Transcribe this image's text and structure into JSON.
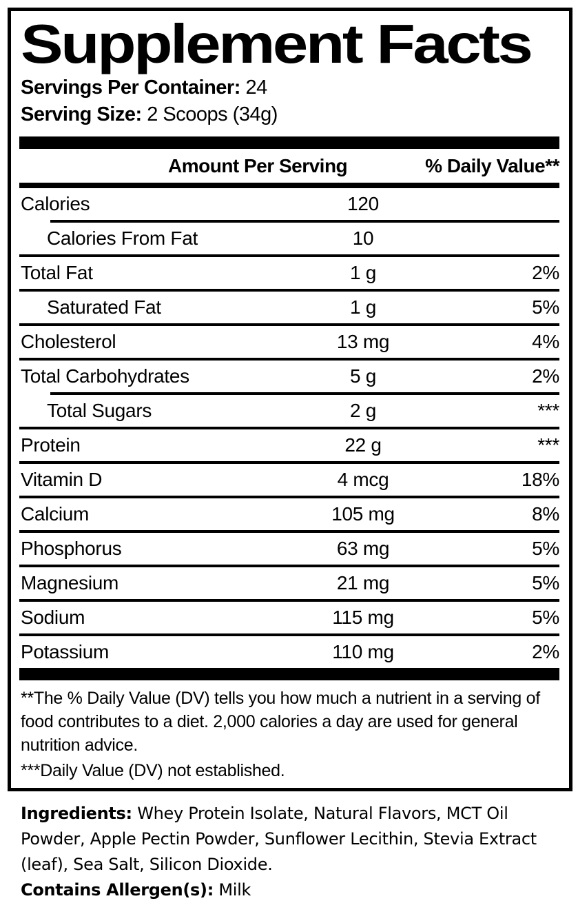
{
  "title": "Supplement Facts",
  "servings_per_container": {
    "label": "Servings Per Container:",
    "value": "24"
  },
  "serving_size": {
    "label": "Serving Size:",
    "value": "2 Scoops (34g)"
  },
  "table": {
    "headers": {
      "amount": "Amount Per Serving",
      "daily_value": "% Daily Value**"
    },
    "rows": [
      {
        "name": "Calories",
        "amount": "120",
        "dv": "",
        "indent": false,
        "rule_above_indented": false
      },
      {
        "name": "Calories From Fat",
        "amount": "10",
        "dv": "",
        "indent": true,
        "rule_above_indented": true
      },
      {
        "name": "Total Fat",
        "amount": "1 g",
        "dv": "2%",
        "indent": false,
        "rule_above_indented": false
      },
      {
        "name": "Saturated Fat",
        "amount": "1 g",
        "dv": "5%",
        "indent": true,
        "rule_above_indented": false
      },
      {
        "name": "Cholesterol",
        "amount": "13 mg",
        "dv": "4%",
        "indent": false,
        "rule_above_indented": false
      },
      {
        "name": "Total Carbohydrates",
        "amount": "5 g",
        "dv": "2%",
        "indent": false,
        "rule_above_indented": false
      },
      {
        "name": "Total Sugars",
        "amount": "2 g",
        "dv": "***",
        "indent": true,
        "rule_above_indented": true
      },
      {
        "name": "Protein",
        "amount": "22 g",
        "dv": "***",
        "indent": false,
        "rule_above_indented": false
      },
      {
        "name": "Vitamin D",
        "amount": "4 mcg",
        "dv": "18%",
        "indent": false,
        "rule_above_indented": false
      },
      {
        "name": "Calcium",
        "amount": "105 mg",
        "dv": "8%",
        "indent": false,
        "rule_above_indented": false
      },
      {
        "name": "Phosphorus",
        "amount": "63 mg",
        "dv": "5%",
        "indent": false,
        "rule_above_indented": false
      },
      {
        "name": "Magnesium",
        "amount": "21 mg",
        "dv": "5%",
        "indent": false,
        "rule_above_indented": false
      },
      {
        "name": "Sodium",
        "amount": "115 mg",
        "dv": "5%",
        "indent": false,
        "rule_above_indented": false
      },
      {
        "name": "Potassium",
        "amount": "110 mg",
        "dv": "2%",
        "indent": false,
        "rule_above_indented": false
      }
    ]
  },
  "footnotes": [
    "**The % Daily Value (DV) tells you how much a nutrient in a serving of food contributes to a diet. 2,000 calories a day are used for general nutrition advice.",
    "***Daily Value (DV) not established."
  ],
  "ingredients": {
    "label": "Ingredients:",
    "value": "Whey Protein Isolate, Natural Flavors, MCT Oil Powder, Apple Pectin Powder, Sunflower Lecithin, Stevia Extract (leaf), Sea Salt, Silicon Dioxide."
  },
  "allergens": {
    "label": "Contains Allergen(s):",
    "value": "Milk"
  },
  "colors": {
    "text": "#000000",
    "background": "#ffffff"
  }
}
